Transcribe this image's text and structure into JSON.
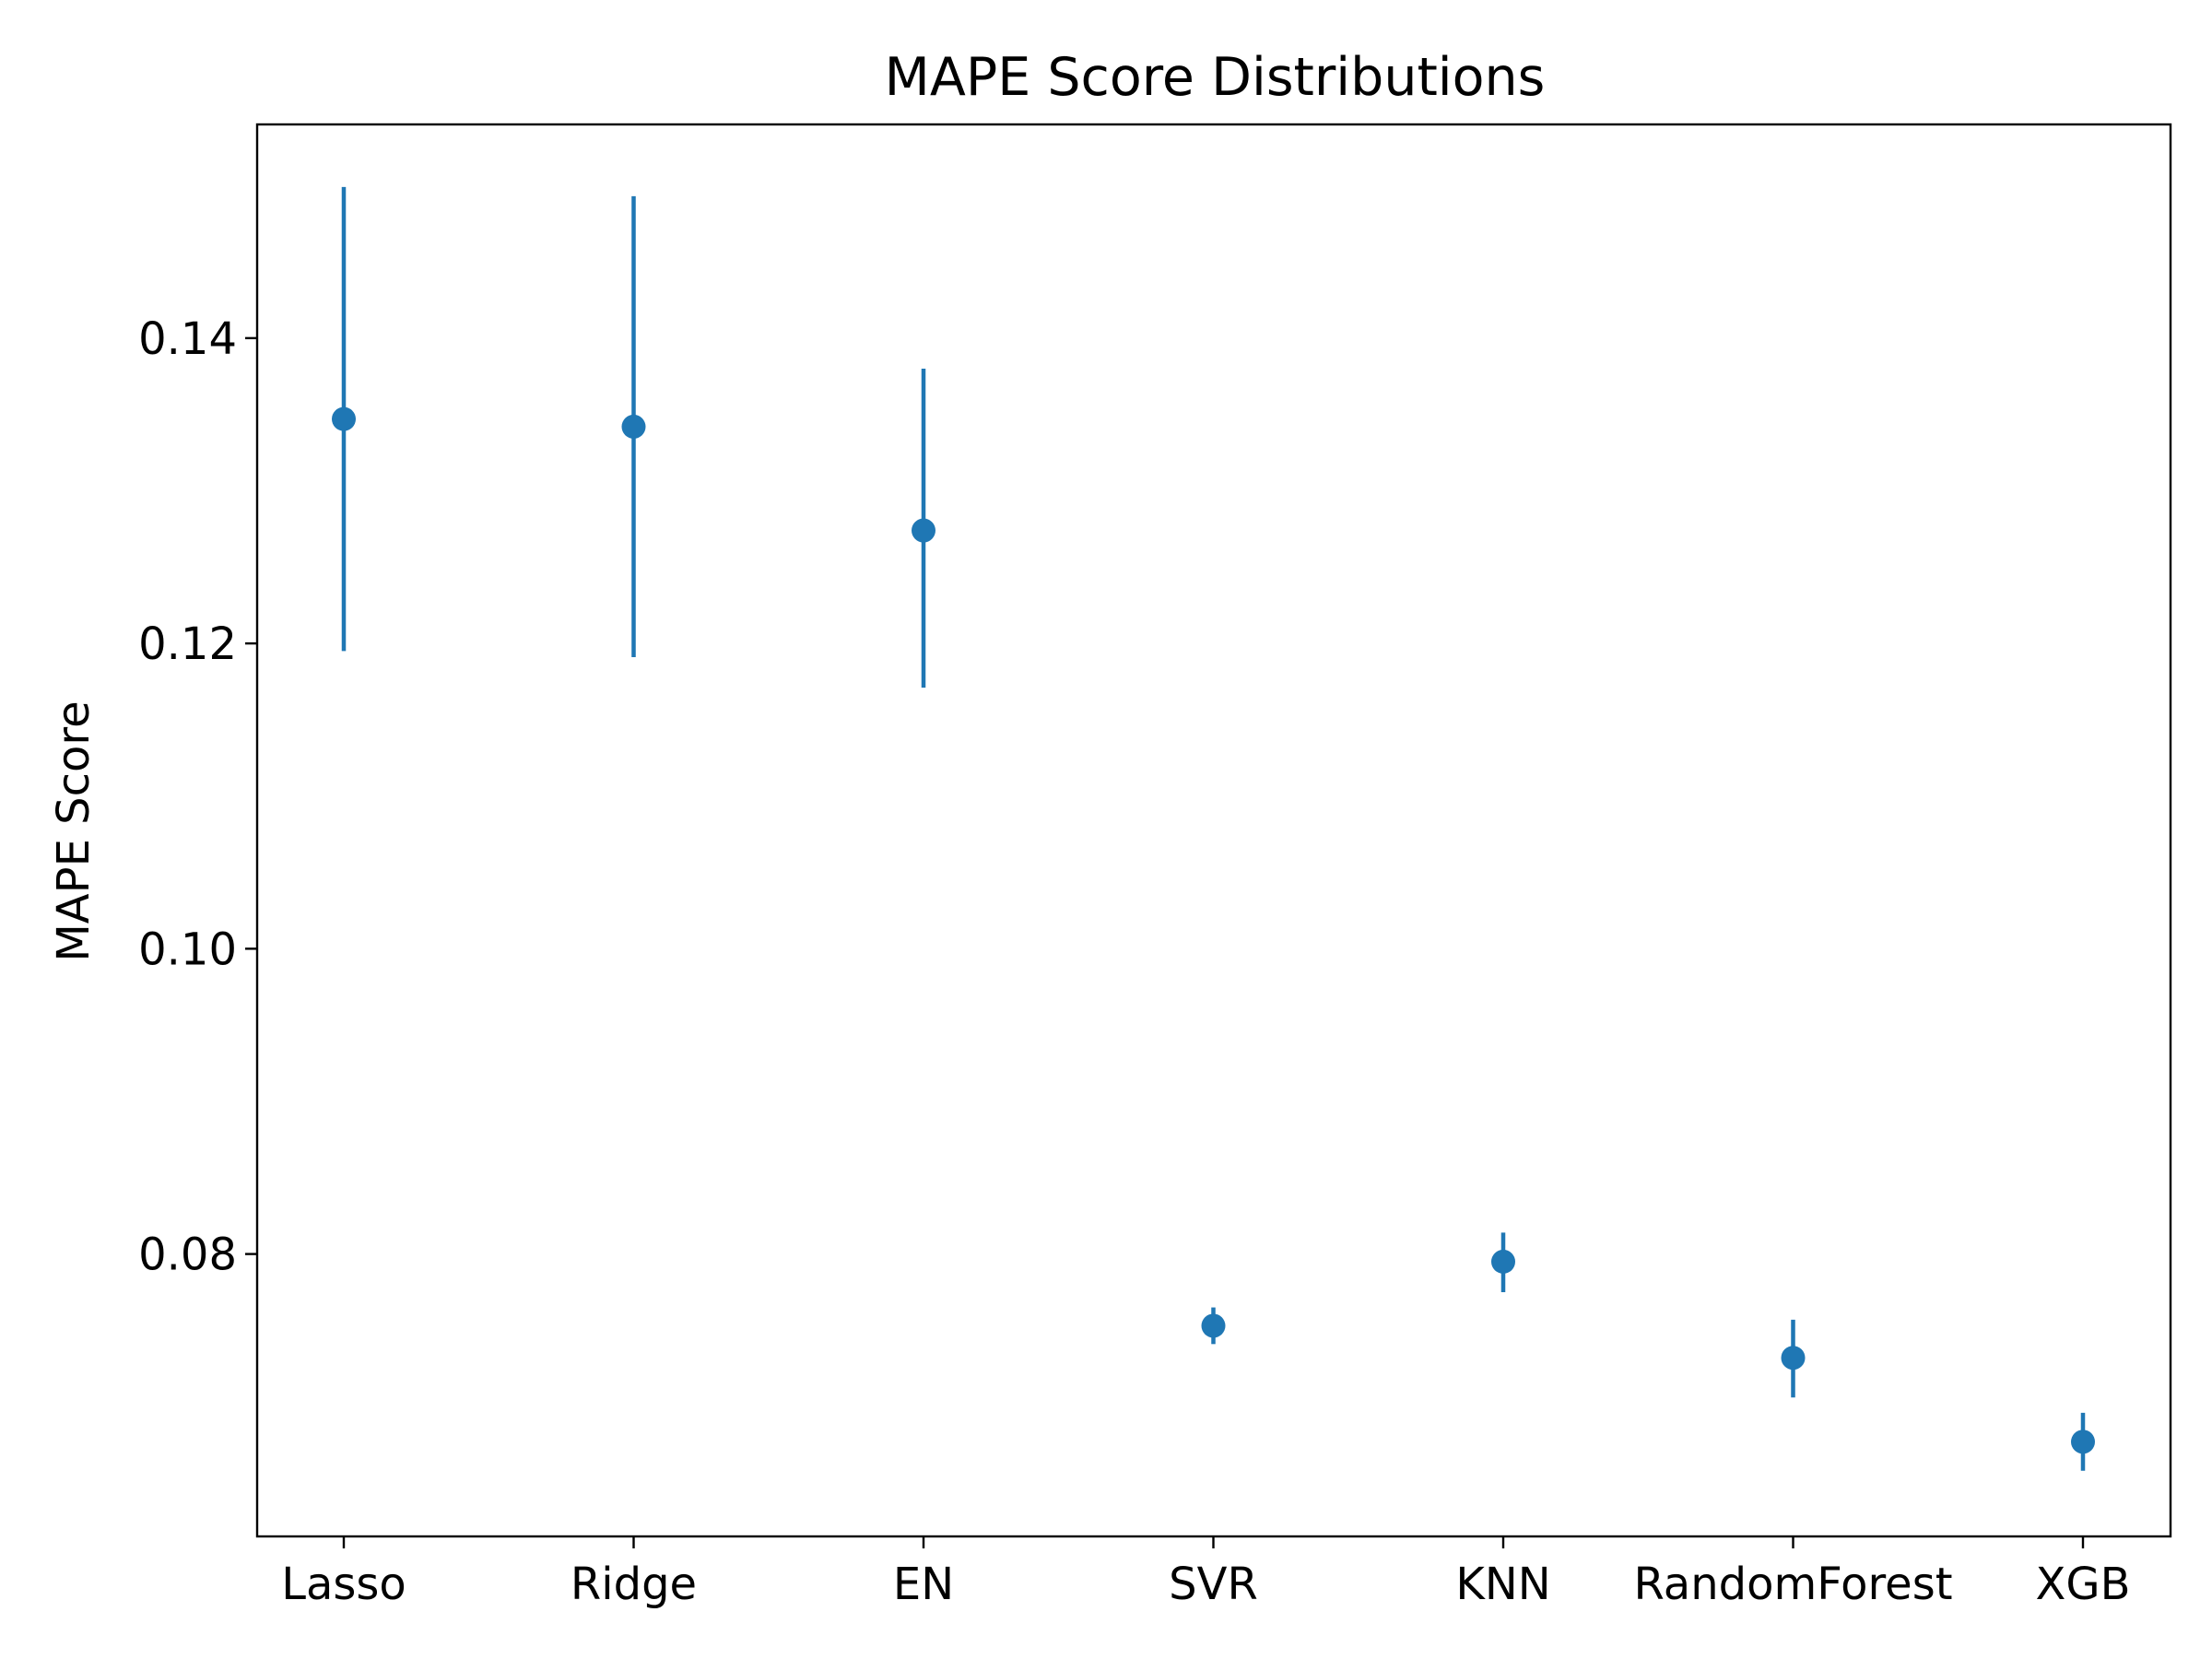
{
  "chart_data": {
    "type": "scatter",
    "title": "MAPE Score Distributions",
    "xlabel": "",
    "ylabel": "MAPE Score",
    "categories": [
      "Lasso",
      "Ridge",
      "EN",
      "SVR",
      "KNN",
      "RandomForest",
      "XGB"
    ],
    "means": [
      0.1347,
      0.1342,
      0.1274,
      0.0753,
      0.0795,
      0.0732,
      0.0677
    ],
    "lower": [
      0.1195,
      0.1191,
      0.1171,
      0.0741,
      0.0775,
      0.0706,
      0.0658
    ],
    "upper": [
      0.1499,
      0.1493,
      0.138,
      0.0765,
      0.0814,
      0.0757,
      0.0696
    ],
    "yticks": [
      "0.08",
      "0.10",
      "0.12",
      "0.14"
    ],
    "ylim": [
      0.0615,
      0.154
    ],
    "grid": false,
    "color": "#1f77b4"
  }
}
